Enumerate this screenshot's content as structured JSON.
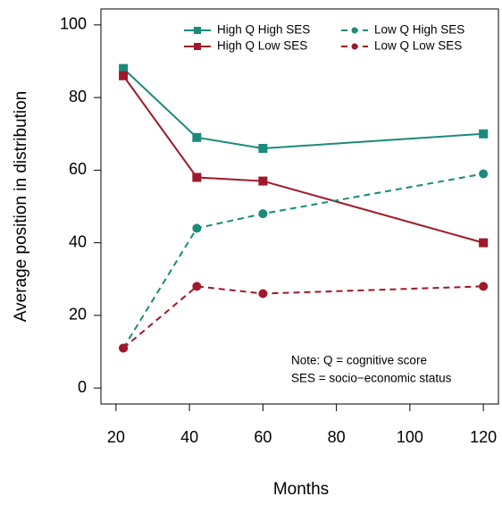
{
  "chart_data": {
    "type": "line",
    "x_label": "Months",
    "y_label": "Average position in distribution",
    "x": [
      22,
      42,
      60,
      120
    ],
    "series": [
      {
        "name": "High Q High SES",
        "color": "#1a8a7a",
        "marker": "square",
        "dash": false,
        "values": [
          88,
          69,
          66,
          70
        ]
      },
      {
        "name": "High Q Low SES",
        "color": "#a0182a",
        "marker": "square",
        "dash": false,
        "values": [
          86,
          58,
          57,
          40
        ]
      },
      {
        "name": "Low Q High SES",
        "color": "#1a8a7a",
        "marker": "circle",
        "dash": true,
        "values": [
          11,
          44,
          48,
          59
        ]
      },
      {
        "name": "Low Q Low SES",
        "color": "#a0182a",
        "marker": "circle",
        "dash": true,
        "values": [
          11,
          28,
          26,
          28
        ]
      }
    ],
    "xlim": [
      15.9,
      124.1
    ],
    "xticks": [
      20,
      40,
      60,
      80,
      100,
      120
    ],
    "ylim": [
      -4.4,
      104.4
    ],
    "yticks": [
      0,
      20,
      40,
      60,
      80,
      100
    ],
    "legend": "top-right",
    "annotations": [
      "Note: Q = cognitive score",
      "SES = socio−economic status"
    ]
  }
}
